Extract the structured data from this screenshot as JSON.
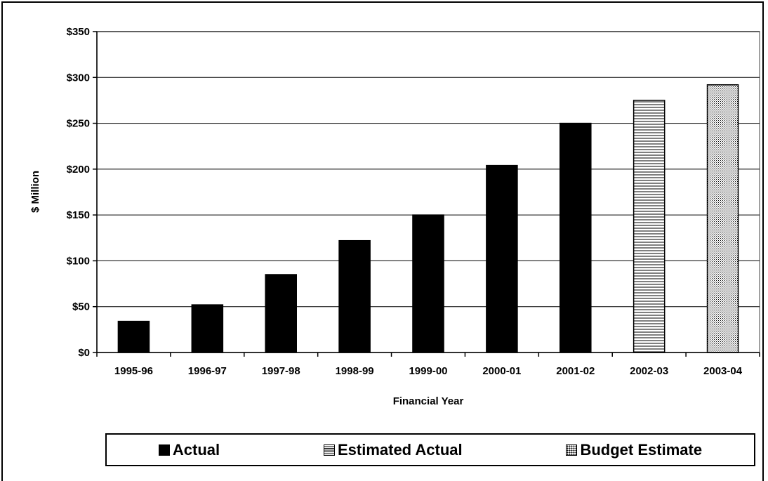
{
  "chart_data": {
    "type": "bar",
    "title": "",
    "xlabel": "Financial Year",
    "ylabel": "$ Million",
    "ylim": [
      0,
      350
    ],
    "ytick_values": [
      0,
      50,
      100,
      150,
      200,
      250,
      300,
      350
    ],
    "ytick_labels": [
      "$0",
      "$50",
      "$100",
      "$150",
      "$200",
      "$250",
      "$300",
      "$350"
    ],
    "categories": [
      "1995-96",
      "1996-97",
      "1997-98",
      "1998-99",
      "1999-00",
      "2000-01",
      "2001-02",
      "2002-03",
      "2003-04"
    ],
    "values": [
      34,
      52,
      85,
      122,
      150,
      204,
      250,
      275,
      292
    ],
    "series_of_bar": [
      "actual",
      "actual",
      "actual",
      "actual",
      "actual",
      "actual",
      "actual",
      "estimated",
      "budget"
    ],
    "grid": true,
    "legend_position": "bottom",
    "legend": [
      {
        "key": "actual",
        "label": "Actual",
        "pattern": "solid",
        "color": "#000000"
      },
      {
        "key": "estimated",
        "label": "Estimated Actual",
        "pattern": "horizontal-lines",
        "color": "#000000"
      },
      {
        "key": "budget",
        "label": "Budget Estimate",
        "pattern": "dots",
        "color": "#000000"
      }
    ]
  }
}
